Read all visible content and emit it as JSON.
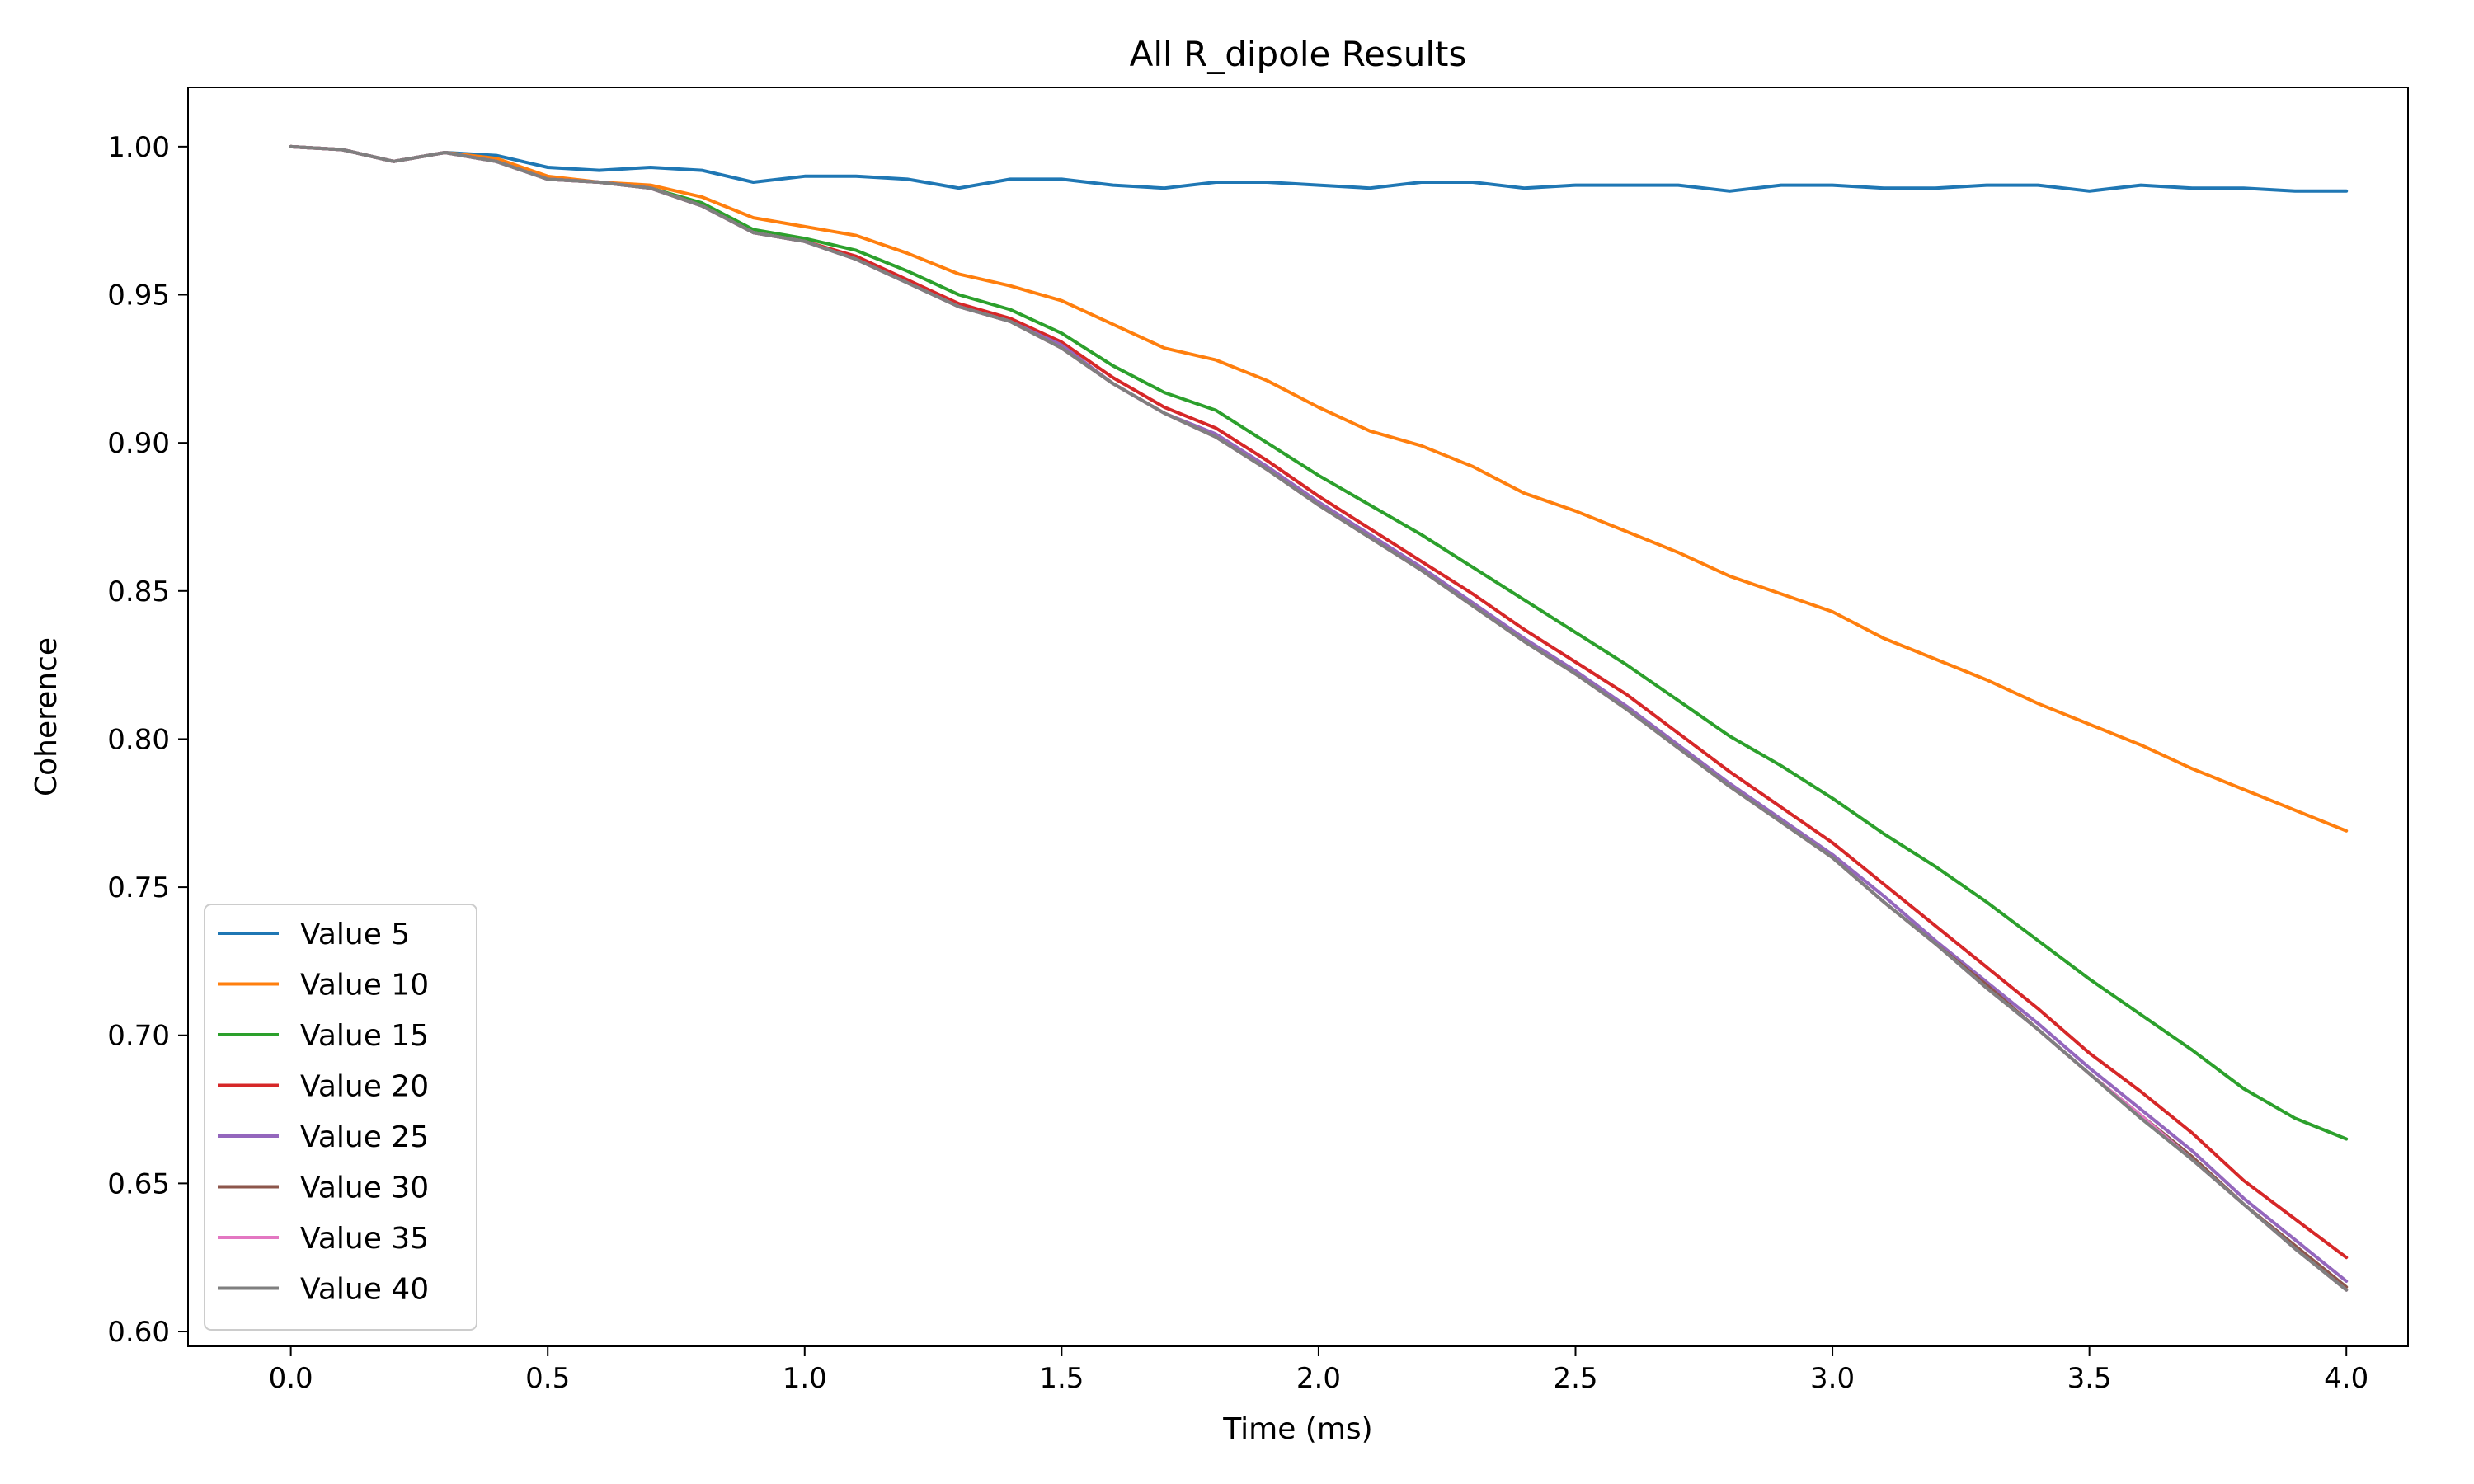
{
  "chart_data": {
    "type": "line",
    "title": "All R_dipole Results",
    "xlabel": "Time (ms)",
    "ylabel": "Coherence",
    "xlim": [
      -0.2,
      4.12
    ],
    "ylim": [
      0.595,
      1.02
    ],
    "xticks": [
      "0.0",
      "0.5",
      "1.0",
      "1.5",
      "2.0",
      "2.5",
      "3.0",
      "3.5",
      "4.0"
    ],
    "yticks": [
      "0.60",
      "0.65",
      "0.70",
      "0.75",
      "0.80",
      "0.85",
      "0.90",
      "0.95",
      "1.00"
    ],
    "grid": false,
    "legend_position": "lower-left",
    "x": [
      0.0,
      0.1,
      0.2,
      0.3,
      0.4,
      0.5,
      0.6,
      0.7,
      0.8,
      0.9,
      1.0,
      1.1,
      1.2,
      1.3,
      1.4,
      1.5,
      1.6,
      1.7,
      1.8,
      1.9,
      2.0,
      2.1,
      2.2,
      2.3,
      2.4,
      2.5,
      2.6,
      2.7,
      2.8,
      2.9,
      3.0,
      3.1,
      3.2,
      3.3,
      3.4,
      3.5,
      3.6,
      3.7,
      3.8,
      3.9,
      4.0
    ],
    "series": [
      {
        "name": "Value 5",
        "color": "#1f77b4",
        "values": [
          1.0,
          0.999,
          0.995,
          0.998,
          0.997,
          0.993,
          0.992,
          0.993,
          0.992,
          0.988,
          0.99,
          0.99,
          0.989,
          0.986,
          0.989,
          0.989,
          0.987,
          0.986,
          0.988,
          0.988,
          0.987,
          0.986,
          0.988,
          0.988,
          0.986,
          0.987,
          0.987,
          0.987,
          0.985,
          0.987,
          0.987,
          0.986,
          0.986,
          0.987,
          0.987,
          0.985,
          0.987,
          0.986,
          0.986,
          0.985,
          0.985
        ]
      },
      {
        "name": "Value 10",
        "color": "#ff7f0e",
        "values": [
          1.0,
          0.999,
          0.995,
          0.998,
          0.996,
          0.99,
          0.988,
          0.987,
          0.983,
          0.976,
          0.973,
          0.97,
          0.964,
          0.957,
          0.953,
          0.948,
          0.94,
          0.932,
          0.928,
          0.921,
          0.912,
          0.904,
          0.899,
          0.892,
          0.883,
          0.877,
          0.87,
          0.863,
          0.855,
          0.849,
          0.843,
          0.834,
          0.827,
          0.82,
          0.812,
          0.805,
          0.798,
          0.79,
          0.783,
          0.776,
          0.769
        ]
      },
      {
        "name": "Value 15",
        "color": "#2ca02c",
        "values": [
          1.0,
          0.999,
          0.995,
          0.998,
          0.995,
          0.989,
          0.988,
          0.986,
          0.981,
          0.972,
          0.969,
          0.965,
          0.958,
          0.95,
          0.945,
          0.937,
          0.926,
          0.917,
          0.911,
          0.9,
          0.889,
          0.879,
          0.869,
          0.858,
          0.847,
          0.836,
          0.825,
          0.813,
          0.801,
          0.791,
          0.78,
          0.768,
          0.757,
          0.745,
          0.732,
          0.719,
          0.707,
          0.695,
          0.682,
          0.672,
          0.665
        ]
      },
      {
        "name": "Value 20",
        "color": "#d62728",
        "values": [
          1.0,
          0.999,
          0.995,
          0.998,
          0.995,
          0.989,
          0.988,
          0.986,
          0.98,
          0.971,
          0.968,
          0.963,
          0.955,
          0.947,
          0.942,
          0.934,
          0.922,
          0.912,
          0.905,
          0.894,
          0.882,
          0.871,
          0.86,
          0.849,
          0.837,
          0.826,
          0.815,
          0.802,
          0.789,
          0.777,
          0.765,
          0.751,
          0.737,
          0.723,
          0.709,
          0.694,
          0.681,
          0.667,
          0.651,
          0.638,
          0.625
        ]
      },
      {
        "name": "Value 25",
        "color": "#9467bd",
        "values": [
          1.0,
          0.999,
          0.995,
          0.998,
          0.995,
          0.989,
          0.988,
          0.986,
          0.98,
          0.971,
          0.968,
          0.962,
          0.954,
          0.946,
          0.941,
          0.933,
          0.92,
          0.91,
          0.903,
          0.892,
          0.88,
          0.869,
          0.858,
          0.846,
          0.834,
          0.823,
          0.811,
          0.798,
          0.785,
          0.773,
          0.761,
          0.747,
          0.732,
          0.718,
          0.704,
          0.689,
          0.675,
          0.661,
          0.645,
          0.631,
          0.617
        ]
      },
      {
        "name": "Value 30",
        "color": "#8c564b",
        "values": [
          1.0,
          0.999,
          0.995,
          0.998,
          0.995,
          0.989,
          0.988,
          0.986,
          0.98,
          0.971,
          0.968,
          0.962,
          0.954,
          0.946,
          0.941,
          0.932,
          0.92,
          0.91,
          0.902,
          0.891,
          0.879,
          0.868,
          0.857,
          0.845,
          0.833,
          0.822,
          0.81,
          0.797,
          0.784,
          0.772,
          0.76,
          0.745,
          0.731,
          0.717,
          0.702,
          0.687,
          0.673,
          0.659,
          0.643,
          0.629,
          0.615
        ]
      },
      {
        "name": "Value 35",
        "color": "#e377c2",
        "values": [
          1.0,
          0.999,
          0.995,
          0.998,
          0.995,
          0.989,
          0.988,
          0.986,
          0.98,
          0.971,
          0.968,
          0.962,
          0.954,
          0.946,
          0.941,
          0.932,
          0.92,
          0.91,
          0.902,
          0.891,
          0.879,
          0.868,
          0.857,
          0.845,
          0.833,
          0.822,
          0.81,
          0.797,
          0.784,
          0.772,
          0.76,
          0.745,
          0.731,
          0.716,
          0.702,
          0.687,
          0.673,
          0.658,
          0.643,
          0.628,
          0.614
        ]
      },
      {
        "name": "Value 40",
        "color": "#7f7f7f",
        "values": [
          1.0,
          0.999,
          0.995,
          0.998,
          0.995,
          0.989,
          0.988,
          0.986,
          0.98,
          0.971,
          0.968,
          0.962,
          0.954,
          0.946,
          0.941,
          0.932,
          0.92,
          0.91,
          0.902,
          0.891,
          0.879,
          0.868,
          0.857,
          0.845,
          0.833,
          0.822,
          0.81,
          0.797,
          0.784,
          0.772,
          0.76,
          0.745,
          0.731,
          0.716,
          0.702,
          0.687,
          0.672,
          0.658,
          0.643,
          0.628,
          0.614
        ]
      }
    ]
  }
}
